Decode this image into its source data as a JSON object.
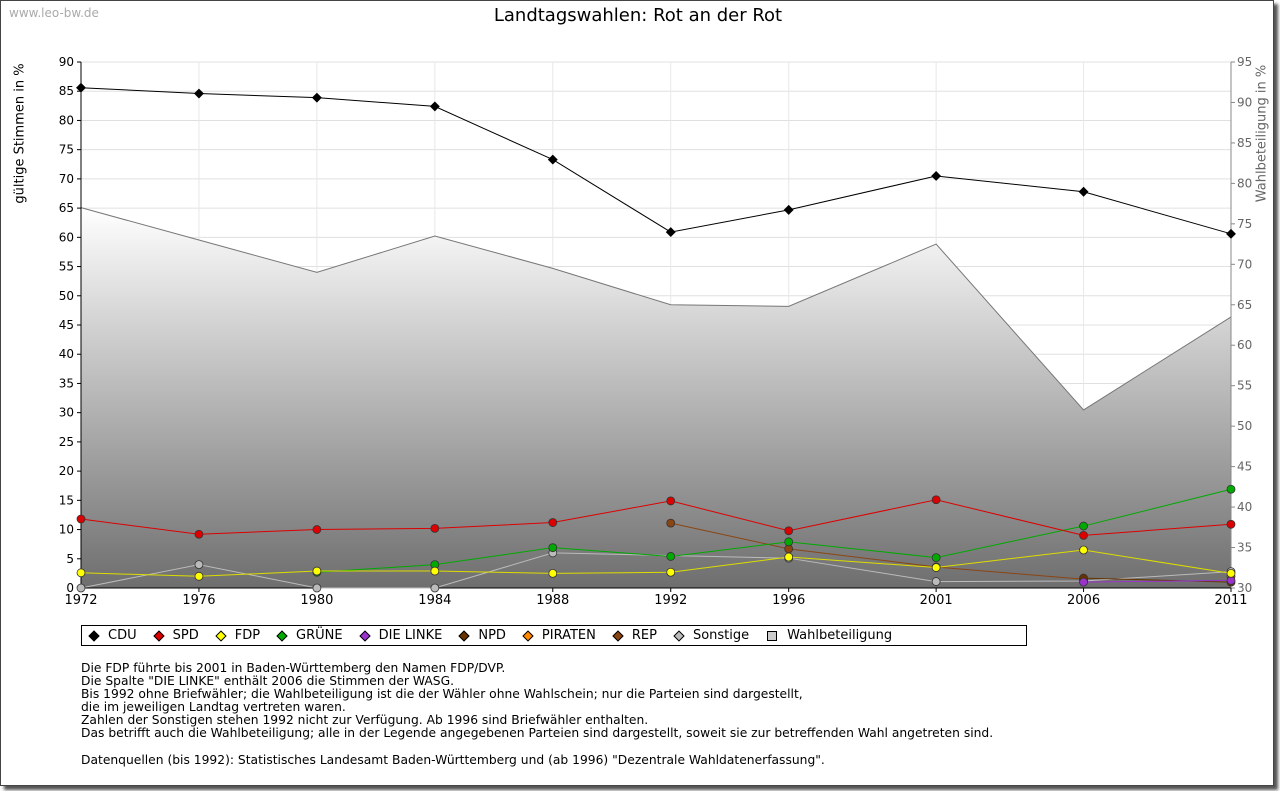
{
  "watermark": "www.leo-bw.de",
  "chart_data": {
    "type": "line",
    "title": "Landtagswahlen: Rot an der Rot",
    "ylabel": "gültige Stimmen in %",
    "y2label": "Wahlbeteiligung in %",
    "x": [
      "1972",
      "1976",
      "1980",
      "1984",
      "1988",
      "1992",
      "1996",
      "2001",
      "2006",
      "2011"
    ],
    "x_numeric": [
      1972,
      1976,
      1980,
      1984,
      1988,
      1992,
      1996,
      2001,
      2006,
      2011
    ],
    "ylim": [
      0,
      90
    ],
    "yticks": [
      "0",
      "5",
      "10",
      "15",
      "20",
      "25",
      "30",
      "35",
      "40",
      "45",
      "50",
      "55",
      "60",
      "65",
      "70",
      "75",
      "80",
      "85",
      "90"
    ],
    "y2lim": [
      30,
      95
    ],
    "y2ticks": [
      "30",
      "35",
      "40",
      "45",
      "50",
      "55",
      "60",
      "65",
      "70",
      "75",
      "80",
      "85",
      "90",
      "95"
    ],
    "grid": true,
    "legend_position": "bottom",
    "series": [
      {
        "name": "CDU",
        "color": "#000000",
        "values": [
          85.6,
          84.6,
          83.9,
          82.4,
          73.3,
          60.9,
          64.7,
          70.5,
          67.8,
          60.6
        ]
      },
      {
        "name": "SPD",
        "color": "#dd0000",
        "values": [
          11.8,
          9.2,
          10.0,
          10.2,
          11.2,
          14.9,
          9.8,
          15.1,
          9.0,
          10.9
        ]
      },
      {
        "name": "FDP",
        "color": "#ffff00",
        "values": [
          2.6,
          2.0,
          2.9,
          2.9,
          2.5,
          2.7,
          5.3,
          3.5,
          6.5,
          2.5
        ]
      },
      {
        "name": "GRÜNE",
        "color": "#00aa00",
        "values": [
          null,
          null,
          2.7,
          4.0,
          6.9,
          5.4,
          7.9,
          5.2,
          10.6,
          16.9
        ]
      },
      {
        "name": "DIE LINKE",
        "color": "#9933cc",
        "values": [
          null,
          null,
          null,
          null,
          null,
          null,
          null,
          null,
          1.0,
          1.3
        ]
      },
      {
        "name": "NPD",
        "color": "#663300",
        "values": [
          null,
          null,
          null,
          null,
          null,
          null,
          null,
          null,
          1.7,
          1.0
        ]
      },
      {
        "name": "PIRATEN",
        "color": "#ff8800",
        "values": [
          null,
          null,
          null,
          null,
          null,
          null,
          null,
          null,
          null,
          2.0
        ]
      },
      {
        "name": "REP",
        "color": "#8b4513",
        "values": [
          null,
          null,
          null,
          null,
          null,
          11.1,
          6.7,
          3.6,
          1.5,
          null
        ]
      },
      {
        "name": "Sonstige",
        "color": "#bbbbbb",
        "values": [
          0.0,
          4.0,
          0.0,
          0.0,
          6.0,
          null,
          5.1,
          1.1,
          1.2,
          2.8
        ]
      }
    ],
    "area_series": {
      "name": "Wahlbeteiligung",
      "axis": "right",
      "color": "#cccccc",
      "values": [
        77.0,
        73.0,
        69.0,
        73.5,
        69.5,
        65.0,
        64.8,
        72.5,
        52.0,
        63.5
      ]
    }
  },
  "notes": [
    "Die FDP führte bis 2001 in Baden-Württemberg den Namen FDP/DVP.",
    "Die Spalte \"DIE LINKE\" enthält 2006 die Stimmen der WASG.",
    "Bis 1992 ohne Briefwähler; die Wahlbeteiligung ist die der Wähler ohne Wahlschein; nur die Parteien sind dargestellt,",
    "die im jeweiligen Landtag vertreten waren.",
    "Zahlen der Sonstigen stehen 1992 nicht zur Verfügung. Ab 1996 sind Briefwähler enthalten.",
    "Das betrifft auch die Wahlbeteiligung; alle in der Legende angegebenen Parteien sind dargestellt, soweit sie zur betreffenden Wahl angetreten sind."
  ],
  "source": "Datenquellen (bis 1992): Statistisches Landesamt Baden-Württemberg und (ab 1996) \"Dezentrale Wahldatenerfassung\"."
}
